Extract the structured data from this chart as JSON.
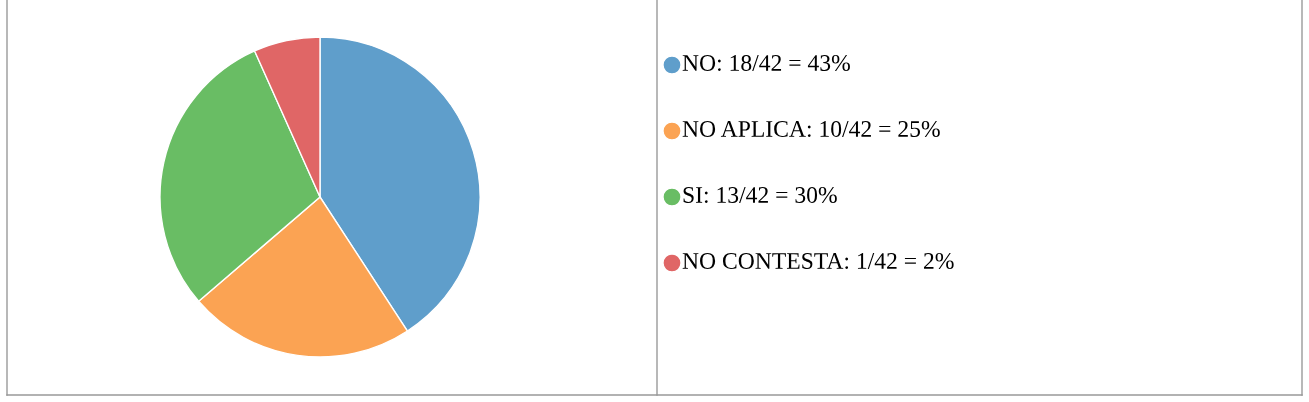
{
  "chart_data": {
    "type": "pie",
    "categories": [
      "NO: 18/42 = 43%",
      "NO APLICA: 10/42 = 25%",
      "SI: 13/42 = 30%",
      "NO CONTESTA: 1/42 = 2%"
    ],
    "values": [
      40.8,
      22.9,
      29.6,
      6.7
    ],
    "colors": [
      "#5f9ecb",
      "#fba353",
      "#69bd64",
      "#e06666"
    ],
    "legend": "right"
  }
}
